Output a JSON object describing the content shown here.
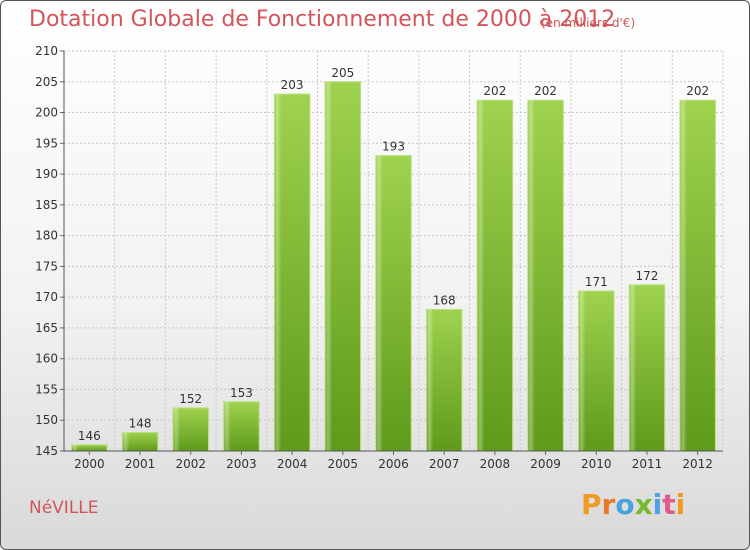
{
  "header": {
    "title": "Dotation Globale de Fonctionnement de 2000 à 2012",
    "unit": "(en milliers d'€)"
  },
  "footer": {
    "commune": "NéVILLE",
    "logo": {
      "letters": [
        "P",
        "r",
        "o",
        "x",
        "i",
        "t",
        "i"
      ],
      "colors": [
        "#f19a23",
        "#e8792a",
        "#4aa3df",
        "#78b92f",
        "#4aa3df",
        "#e05a8a",
        "#f19a23"
      ]
    }
  },
  "chart_data": {
    "type": "bar",
    "categories": [
      "2000",
      "2001",
      "2002",
      "2003",
      "2004",
      "2005",
      "2006",
      "2007",
      "2008",
      "2009",
      "2010",
      "2011",
      "2012"
    ],
    "values": [
      146,
      148,
      152,
      153,
      203,
      205,
      193,
      168,
      202,
      202,
      171,
      172,
      202
    ],
    "title": "Dotation Globale de Fonctionnement de 2000 à 2012",
    "xlabel": "",
    "ylabel": "",
    "ylim": [
      145,
      210
    ],
    "yticks": [
      145,
      150,
      155,
      160,
      165,
      170,
      175,
      180,
      185,
      190,
      195,
      200,
      205,
      210
    ],
    "grid": true,
    "bar_color": "#8cc63f"
  }
}
